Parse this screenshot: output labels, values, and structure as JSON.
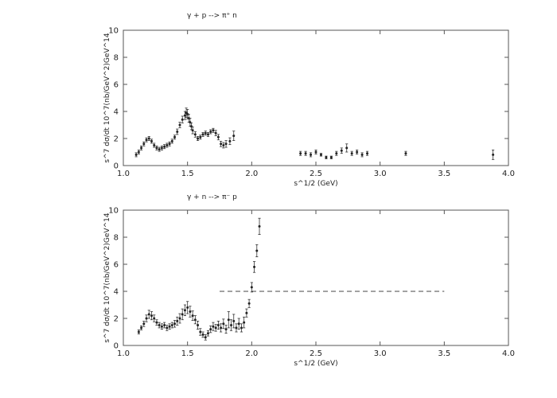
{
  "chart_data": [
    {
      "type": "scatter",
      "title": "γ + p --> π⁺ n",
      "xlabel": "s^1/2 (GeV)",
      "ylabel": "s^7 dσ/dt  10^7(nb/GeV^2)GeV^14",
      "xlim": [
        1.0,
        4.0
      ],
      "ylim": [
        0,
        10
      ],
      "xticks": [
        "1.0",
        "1.5",
        "2.0",
        "2.5",
        "3.0",
        "3.5",
        "4.0"
      ],
      "yticks": [
        "0",
        "2",
        "4",
        "6",
        "8",
        "10"
      ],
      "grid": false,
      "series": [
        {
          "x": [
            1.1,
            1.12,
            1.14,
            1.16,
            1.18,
            1.2,
            1.22,
            1.24,
            1.26,
            1.28,
            1.3,
            1.32,
            1.34,
            1.36,
            1.38,
            1.4,
            1.42,
            1.44,
            1.46,
            1.48,
            1.49,
            1.5,
            1.51,
            1.52,
            1.53,
            1.54,
            1.56,
            1.58,
            1.6,
            1.62,
            1.64,
            1.66,
            1.68,
            1.7,
            1.72,
            1.74,
            1.76,
            1.78,
            1.8,
            1.83,
            1.86,
            2.38,
            2.42,
            2.46,
            2.5,
            2.54,
            2.58,
            2.62,
            2.66,
            2.7,
            2.74,
            2.78,
            2.82,
            2.86,
            2.9,
            3.2,
            3.88
          ],
          "y": [
            0.8,
            1.0,
            1.3,
            1.6,
            1.9,
            2.0,
            1.8,
            1.5,
            1.3,
            1.2,
            1.3,
            1.4,
            1.5,
            1.6,
            1.8,
            2.1,
            2.5,
            3.0,
            3.4,
            3.7,
            3.9,
            3.8,
            3.5,
            3.2,
            2.9,
            2.6,
            2.3,
            2.0,
            2.1,
            2.3,
            2.4,
            2.3,
            2.5,
            2.6,
            2.4,
            2.1,
            1.6,
            1.5,
            1.6,
            1.8,
            2.2,
            0.9,
            0.9,
            0.8,
            1.0,
            0.8,
            0.6,
            0.6,
            0.9,
            1.1,
            1.3,
            0.9,
            1.0,
            0.8,
            0.9,
            0.9,
            0.8
          ],
          "err": [
            0.15,
            0.15,
            0.15,
            0.15,
            0.15,
            0.15,
            0.15,
            0.15,
            0.15,
            0.15,
            0.15,
            0.15,
            0.15,
            0.15,
            0.15,
            0.15,
            0.2,
            0.2,
            0.25,
            0.3,
            0.35,
            0.35,
            0.3,
            0.3,
            0.25,
            0.25,
            0.2,
            0.15,
            0.15,
            0.15,
            0.15,
            0.15,
            0.15,
            0.15,
            0.2,
            0.2,
            0.2,
            0.2,
            0.25,
            0.25,
            0.35,
            0.15,
            0.15,
            0.15,
            0.15,
            0.1,
            0.1,
            0.1,
            0.15,
            0.2,
            0.3,
            0.15,
            0.15,
            0.15,
            0.15,
            0.15,
            0.35
          ]
        }
      ]
    },
    {
      "type": "scatter",
      "title": "γ + n --> π⁻ p",
      "xlabel": "s^1/2 (GeV)",
      "ylabel": "s^7 dσ/dt  10^7(nb/GeV^2)GeV^14",
      "xlim": [
        1.0,
        4.0
      ],
      "ylim": [
        0,
        10
      ],
      "xticks": [
        "1.0",
        "1.5",
        "2.0",
        "2.5",
        "3.0",
        "3.5",
        "4.0"
      ],
      "yticks": [
        "0",
        "2",
        "4",
        "6",
        "8",
        "10"
      ],
      "grid": false,
      "reference_line": {
        "y": 4.0,
        "x": [
          1.75,
          3.5
        ],
        "style": "dashed"
      },
      "series": [
        {
          "x": [
            1.12,
            1.14,
            1.16,
            1.18,
            1.2,
            1.22,
            1.24,
            1.26,
            1.28,
            1.3,
            1.32,
            1.34,
            1.36,
            1.38,
            1.4,
            1.42,
            1.44,
            1.46,
            1.48,
            1.5,
            1.52,
            1.54,
            1.56,
            1.58,
            1.6,
            1.62,
            1.64,
            1.66,
            1.68,
            1.7,
            1.72,
            1.74,
            1.76,
            1.78,
            1.8,
            1.82,
            1.84,
            1.86,
            1.88,
            1.9,
            1.92,
            1.94,
            1.96,
            1.98,
            2.0,
            2.02,
            2.04,
            2.06
          ],
          "y": [
            1.0,
            1.3,
            1.6,
            2.0,
            2.3,
            2.2,
            2.0,
            1.7,
            1.5,
            1.4,
            1.5,
            1.3,
            1.4,
            1.5,
            1.6,
            1.8,
            2.0,
            2.3,
            2.6,
            2.8,
            2.5,
            2.2,
            1.9,
            1.5,
            1.0,
            0.8,
            0.6,
            0.9,
            1.2,
            1.4,
            1.3,
            1.5,
            1.3,
            1.6,
            1.2,
            1.9,
            1.5,
            1.8,
            1.3,
            1.6,
            1.3,
            1.7,
            2.4,
            3.1,
            4.3,
            5.8,
            7.0,
            8.8
          ],
          "err": [
            0.15,
            0.15,
            0.2,
            0.25,
            0.3,
            0.3,
            0.25,
            0.2,
            0.2,
            0.2,
            0.2,
            0.2,
            0.2,
            0.2,
            0.25,
            0.3,
            0.35,
            0.4,
            0.4,
            0.45,
            0.4,
            0.35,
            0.3,
            0.3,
            0.25,
            0.2,
            0.2,
            0.2,
            0.25,
            0.3,
            0.25,
            0.3,
            0.3,
            0.35,
            0.3,
            0.6,
            0.4,
            0.5,
            0.3,
            0.4,
            0.3,
            0.4,
            0.3,
            0.3,
            0.35,
            0.4,
            0.45,
            0.6
          ]
        }
      ]
    }
  ]
}
